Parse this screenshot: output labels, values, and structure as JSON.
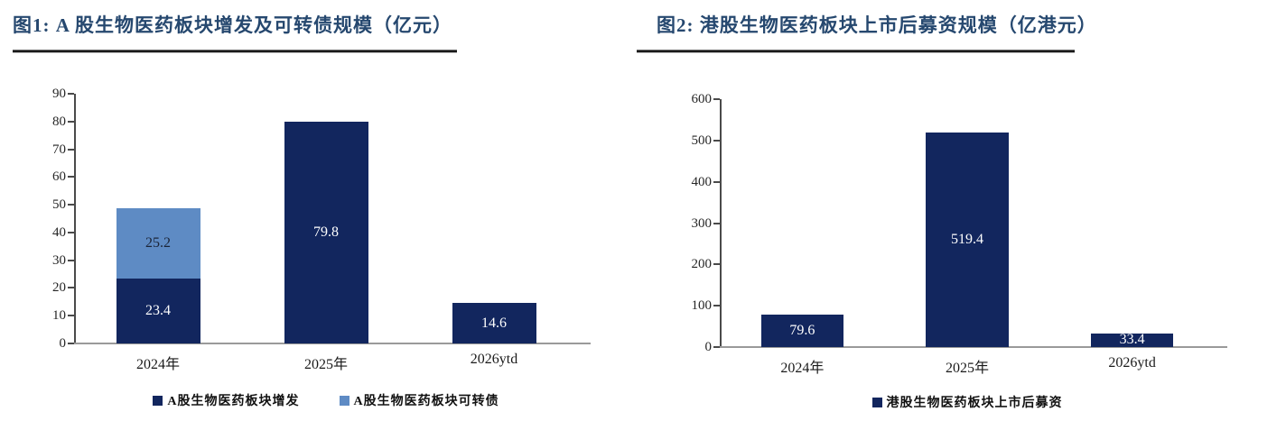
{
  "theme": {
    "title_color": "#26486f",
    "rule_color": "#191919",
    "navy": "#12265e",
    "light_blue": "#5e8bc4",
    "axis_color": "#4a4a4a",
    "baseline_color": "#9a9a9a",
    "tick_label_color": "#262626",
    "legend_text_color": "#111111",
    "background": "#ffffff"
  },
  "chart_data": [
    {
      "type": "bar",
      "stacked": true,
      "title": "图1: A 股生物医药板块增发及可转债规模（亿元）",
      "categories": [
        "2024年",
        "2025年",
        "2026ytd"
      ],
      "series": [
        {
          "name": "A股生物医药板块增发",
          "color": "#12265e",
          "label_color": "#ffffff",
          "values": [
            23.4,
            79.8,
            14.6
          ]
        },
        {
          "name": "A股生物医药板块可转债",
          "color": "#5e8bc4",
          "label_color": "#1b2538",
          "values": [
            25.2,
            0,
            0
          ]
        }
      ],
      "ylim": [
        0,
        90
      ],
      "ytick_step": 10,
      "ytick_labels": [
        "0",
        "10",
        "20",
        "30",
        "40",
        "50",
        "60",
        "70",
        "80",
        "90"
      ],
      "xlabel": "",
      "ylabel": "",
      "grid": false,
      "legend_position": "bottom",
      "bar_value_labels": true
    },
    {
      "type": "bar",
      "stacked": false,
      "title": "图2: 港股生物医药板块上市后募资规模（亿港元）",
      "categories": [
        "2024年",
        "2025年",
        "2026ytd"
      ],
      "series": [
        {
          "name": "港股生物医药板块上市后募资",
          "color": "#12265e",
          "label_color": "#ffffff",
          "values": [
            79.6,
            519.4,
            33.4
          ]
        }
      ],
      "ylim": [
        0,
        600
      ],
      "ytick_step": 100,
      "ytick_labels": [
        "0",
        "100",
        "200",
        "300",
        "400",
        "500",
        "600"
      ],
      "xlabel": "",
      "ylabel": "",
      "grid": false,
      "legend_position": "bottom",
      "bar_value_labels": true
    }
  ]
}
